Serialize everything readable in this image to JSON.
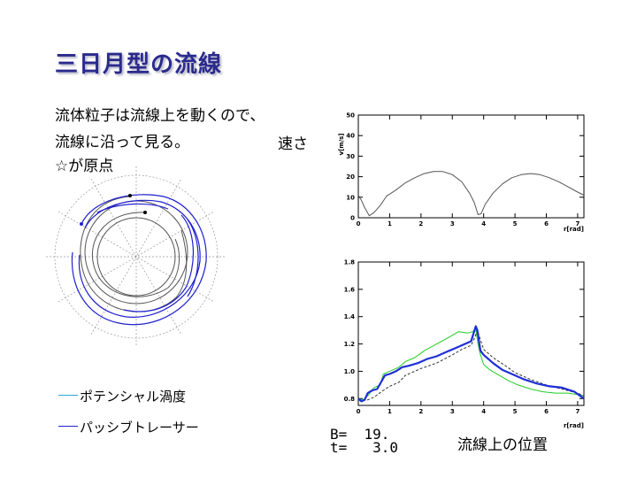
{
  "slide": {
    "title": "三日月型の流線",
    "line1": "流体粒子は流線上を動くので、",
    "line2": "流線に沿って見る。",
    "speed_label": "速さ",
    "origin_note": "☆が原点",
    "legend": [
      {
        "label": "ポテンシャル渦度",
        "color": "#2aa8d8"
      },
      {
        "label": "パッシブトレーサー",
        "color": "#2222cc"
      }
    ],
    "params": {
      "B": "B=  19.",
      "t": "t=   3.0"
    },
    "bottom_caption": "流線上の位置"
  },
  "chart_data": [
    {
      "type": "line",
      "ylabel": "v[m/s]",
      "xlabel": "r[rad]",
      "xlim": [
        0,
        7.2
      ],
      "ylim": [
        0,
        50
      ],
      "xticks": [
        0,
        1,
        2,
        3,
        4,
        5,
        6,
        7
      ],
      "yticks": [
        0,
        10,
        20,
        30,
        40,
        50
      ],
      "series": [
        {
          "color": "#555555",
          "x": [
            0,
            0.1,
            0.2,
            0.35,
            0.5,
            0.7,
            0.9,
            1.2,
            1.5,
            1.8,
            2.1,
            2.4,
            2.7,
            3.0,
            3.3,
            3.55,
            3.7,
            3.82,
            3.92,
            4.05,
            4.3,
            4.6,
            4.9,
            5.2,
            5.5,
            5.8,
            6.1,
            6.4,
            6.7,
            7.0,
            7.2
          ],
          "y": [
            11,
            8.5,
            5,
            1,
            2.5,
            6,
            10.5,
            13.5,
            17,
            19.5,
            21.5,
            22.5,
            22.5,
            21,
            17.5,
            12,
            7.5,
            1.5,
            2,
            6.5,
            12,
            16.5,
            19.5,
            21,
            21.5,
            21,
            19.5,
            17.5,
            15,
            12.5,
            11
          ]
        }
      ]
    },
    {
      "type": "line",
      "xlabel": "r[rad]",
      "xlim": [
        0,
        7.2
      ],
      "ylim": [
        0.75,
        1.8
      ],
      "xticks": [
        0,
        1,
        2,
        3,
        4,
        5,
        6,
        7
      ],
      "yticks": [
        0.8,
        1.0,
        1.2,
        1.4,
        1.6,
        1.8
      ],
      "series": [
        {
          "color": "#22cc22",
          "width": 1,
          "x": [
            0,
            0.15,
            0.3,
            0.5,
            0.7,
            0.8,
            1.0,
            1.3,
            1.5,
            1.8,
            2.1,
            2.5,
            2.9,
            3.2,
            3.5,
            3.65,
            3.75,
            3.82,
            3.9,
            4.0,
            4.2,
            4.5,
            4.8,
            5.1,
            5.5,
            5.9,
            6.3,
            6.7,
            7.0,
            7.2
          ],
          "y": [
            0.8,
            0.79,
            0.82,
            0.88,
            0.9,
            0.98,
            1.0,
            1.03,
            1.07,
            1.1,
            1.15,
            1.2,
            1.25,
            1.29,
            1.28,
            1.29,
            1.31,
            1.2,
            1.12,
            1.05,
            1.01,
            0.97,
            0.93,
            0.9,
            0.87,
            0.85,
            0.84,
            0.84,
            0.83,
            0.82
          ]
        },
        {
          "color": "#333333",
          "width": 1,
          "dash": "3,2",
          "x": [
            0,
            0.3,
            0.5,
            0.8,
            1.0,
            1.3,
            1.5,
            2.0,
            2.5,
            3.0,
            3.3,
            3.6,
            3.72,
            3.8,
            3.9,
            4.0,
            4.3,
            4.7,
            5.0,
            5.5,
            6.0,
            6.5,
            7.0,
            7.2
          ],
          "y": [
            0.79,
            0.79,
            0.81,
            0.86,
            0.89,
            0.92,
            0.97,
            1.02,
            1.06,
            1.12,
            1.16,
            1.19,
            1.25,
            1.3,
            1.23,
            1.16,
            1.1,
            1.04,
            0.99,
            0.94,
            0.9,
            0.87,
            0.84,
            0.82
          ]
        },
        {
          "color": "#1f2fd9",
          "width": 2.2,
          "x": [
            0,
            0.1,
            0.2,
            0.3,
            0.45,
            0.6,
            0.75,
            0.85,
            1.0,
            1.2,
            1.4,
            1.6,
            1.9,
            2.2,
            2.5,
            2.8,
            3.1,
            3.4,
            3.6,
            3.75,
            3.8,
            3.85,
            3.9,
            4.0,
            4.3,
            4.6,
            4.9,
            5.3,
            5.7,
            6.1,
            6.5,
            6.9,
            7.2
          ],
          "y": [
            0.8,
            0.78,
            0.79,
            0.84,
            0.86,
            0.87,
            0.93,
            0.97,
            0.98,
            1.0,
            1.03,
            1.04,
            1.06,
            1.09,
            1.11,
            1.14,
            1.17,
            1.2,
            1.22,
            1.33,
            1.3,
            1.22,
            1.15,
            1.12,
            1.06,
            1.01,
            0.98,
            0.94,
            0.91,
            0.89,
            0.88,
            0.85,
            0.8
          ]
        }
      ]
    }
  ]
}
